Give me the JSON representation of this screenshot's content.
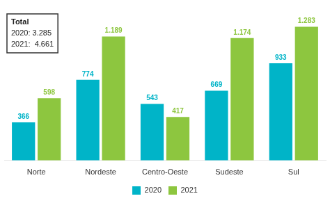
{
  "chart_data": {
    "type": "bar",
    "categories": [
      "Norte",
      "Nordeste",
      "Centro-Oeste",
      "Sudeste",
      "Sul"
    ],
    "series": [
      {
        "name": "2020",
        "color": "#00b4c8",
        "values": [
          366,
          774,
          543,
          669,
          933
        ],
        "value_labels": [
          "366",
          "774",
          "543",
          "669",
          "933"
        ]
      },
      {
        "name": "2021",
        "color": "#8dc63f",
        "values": [
          598,
          1189,
          417,
          1174,
          1283
        ],
        "value_labels": [
          "598",
          "1.189",
          "417",
          "1.174",
          "1.283"
        ]
      }
    ],
    "ylim": [
      0,
      1420
    ],
    "grid": false,
    "legend": "bottom",
    "data_labels": true,
    "tick_labels": "x",
    "annotations": [
      {
        "title": "Total",
        "lines": [
          "2020: 3.285",
          "2021:  4.661"
        ]
      }
    ]
  }
}
